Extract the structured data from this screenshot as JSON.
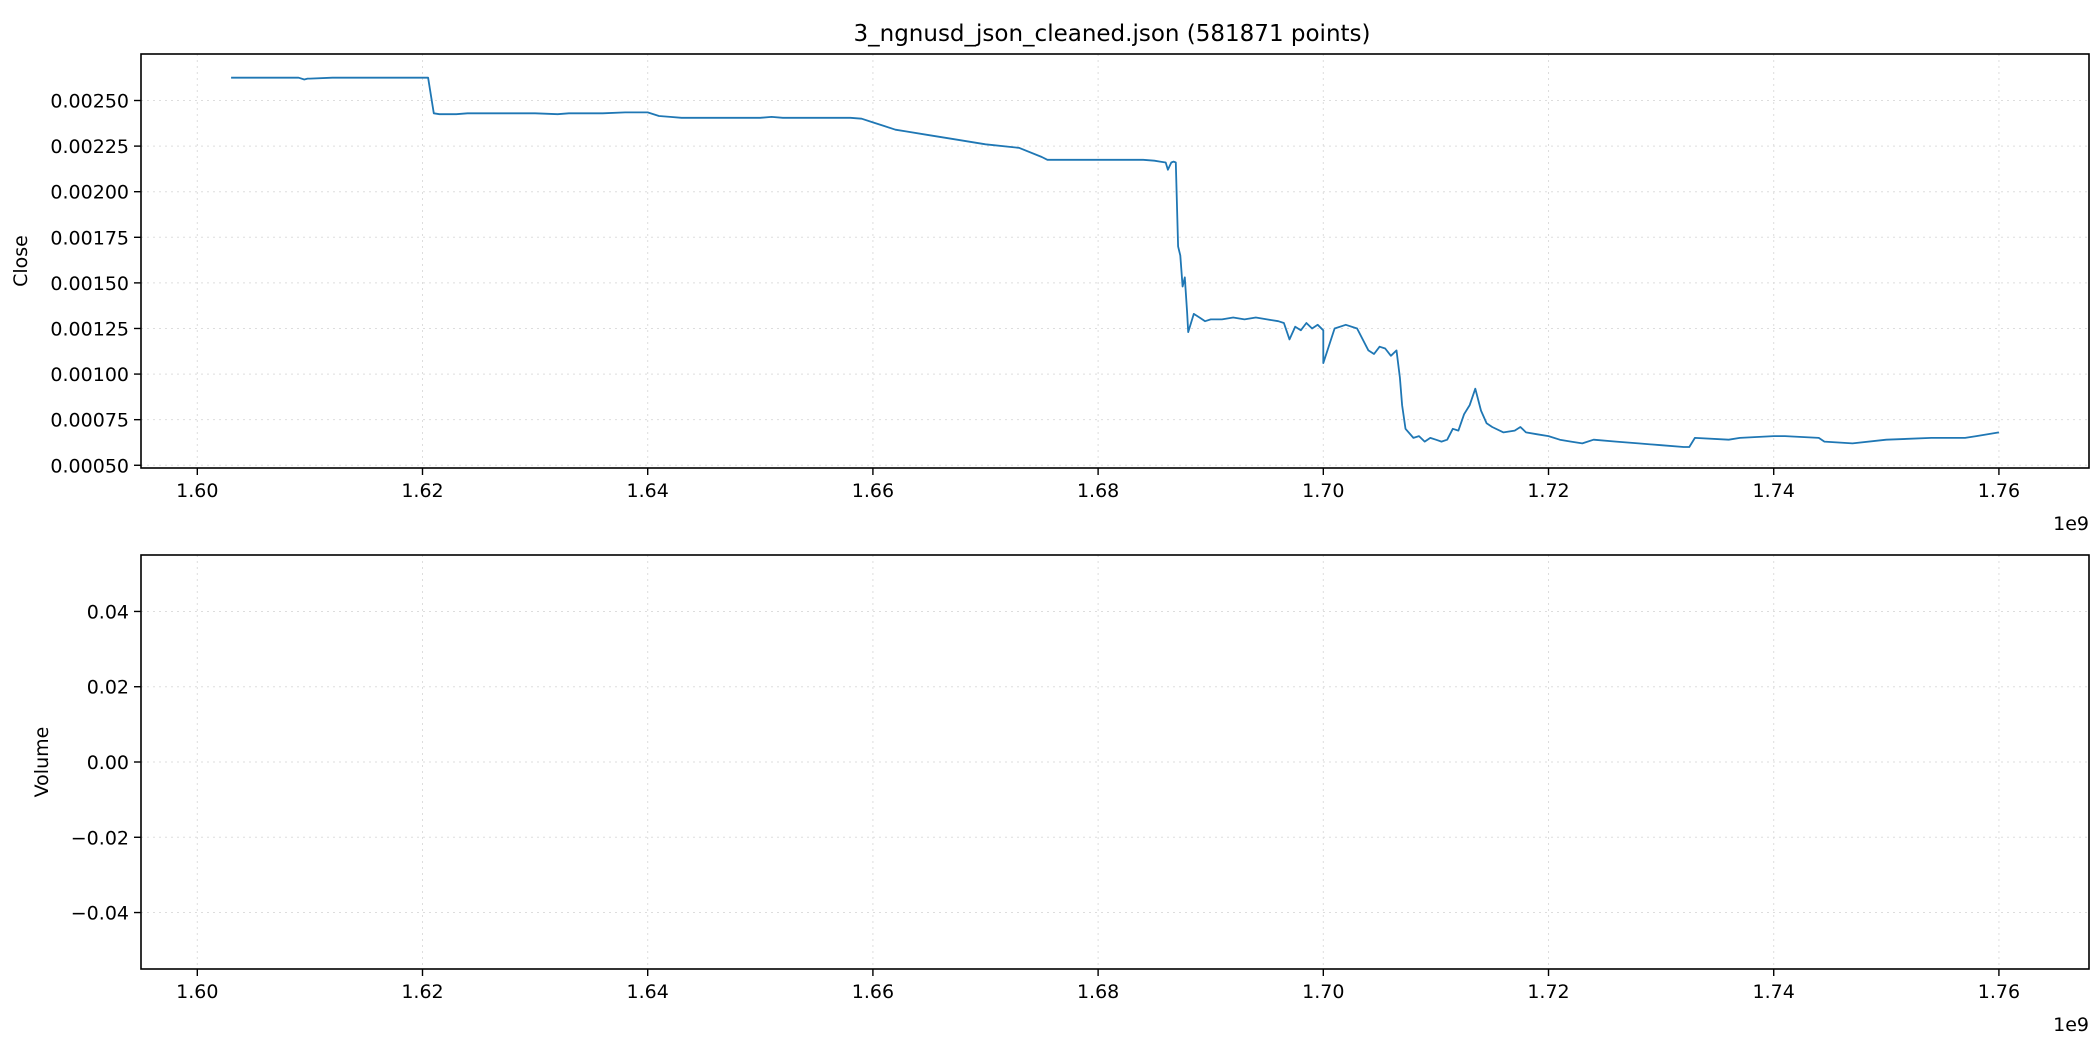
{
  "chart_data": [
    {
      "type": "line",
      "title": "3_ngnusd_json_cleaned.json (581871 points)",
      "xlabel": "",
      "ylabel": "Close",
      "x_offset_label": "1e9",
      "xlim": [
        1.595,
        1.768
      ],
      "ylim": [
        0.000485,
        0.002755
      ],
      "xticks": [
        1.6,
        1.62,
        1.64,
        1.66,
        1.68,
        1.7,
        1.72,
        1.74,
        1.76
      ],
      "xtick_labels": [
        "1.60",
        "1.62",
        "1.64",
        "1.66",
        "1.68",
        "1.70",
        "1.72",
        "1.74",
        "1.76"
      ],
      "yticks": [
        0.0005,
        0.00075,
        0.001,
        0.00125,
        0.0015,
        0.00175,
        0.002,
        0.00225,
        0.0025
      ],
      "ytick_labels": [
        "0.00050",
        "0.00075",
        "0.00100",
        "0.00125",
        "0.00150",
        "0.00175",
        "0.00200",
        "0.00225",
        "0.00250"
      ],
      "grid": true,
      "series": [
        {
          "color": "#1f77b4",
          "x": [
            1.603,
            1.609,
            1.6095,
            1.6098,
            1.61,
            1.612,
            1.6205,
            1.621,
            1.6215,
            1.623,
            1.624,
            1.63,
            1.632,
            1.633,
            1.636,
            1.638,
            1.64,
            1.641,
            1.642,
            1.643,
            1.645,
            1.65,
            1.651,
            1.652,
            1.653,
            1.656,
            1.658,
            1.659,
            1.66,
            1.661,
            1.662,
            1.663,
            1.665,
            1.667,
            1.67,
            1.673,
            1.675,
            1.6755,
            1.678,
            1.682,
            1.684,
            1.685,
            1.6855,
            1.686,
            1.6862,
            1.6865,
            1.6867,
            1.6869,
            1.6871,
            1.6873,
            1.6875,
            1.6877,
            1.6879,
            1.688,
            1.6885,
            1.689,
            1.6895,
            1.69,
            1.691,
            1.692,
            1.693,
            1.694,
            1.695,
            1.696,
            1.6965,
            1.697,
            1.6975,
            1.698,
            1.6985,
            1.699,
            1.6995,
            1.7,
            1.7,
            1.701,
            1.702,
            1.703,
            1.704,
            1.7045,
            1.705,
            1.7055,
            1.706,
            1.7065,
            1.7068,
            1.707,
            1.7073,
            1.708,
            1.7085,
            1.709,
            1.7095,
            1.71,
            1.7105,
            1.711,
            1.7115,
            1.712,
            1.7125,
            1.713,
            1.7135,
            1.714,
            1.7145,
            1.715,
            1.716,
            1.717,
            1.7175,
            1.718,
            1.719,
            1.72,
            1.721,
            1.722,
            1.723,
            1.724,
            1.726,
            1.728,
            1.73,
            1.732,
            1.7325,
            1.733,
            1.736,
            1.737,
            1.74,
            1.741,
            1.744,
            1.7445,
            1.747,
            1.75,
            1.754,
            1.757,
            1.758,
            1.76
          ],
          "y": [
            0.002625,
            0.002625,
            0.002615,
            0.00262,
            0.00262,
            0.002625,
            0.002625,
            0.00243,
            0.002425,
            0.002425,
            0.00243,
            0.00243,
            0.002425,
            0.00243,
            0.00243,
            0.002435,
            0.002435,
            0.002415,
            0.00241,
            0.002405,
            0.002405,
            0.002405,
            0.00241,
            0.002405,
            0.002405,
            0.002405,
            0.002405,
            0.0024,
            0.00238,
            0.00236,
            0.00234,
            0.00233,
            0.00231,
            0.00229,
            0.00226,
            0.00224,
            0.00219,
            0.002175,
            0.002175,
            0.002175,
            0.002175,
            0.00217,
            0.002165,
            0.00216,
            0.00212,
            0.00216,
            0.002165,
            0.00216,
            0.0017,
            0.00165,
            0.00148,
            0.00153,
            0.00134,
            0.00123,
            0.00133,
            0.00131,
            0.00129,
            0.0013,
            0.0013,
            0.00131,
            0.0013,
            0.00131,
            0.0013,
            0.00129,
            0.00128,
            0.00119,
            0.00126,
            0.00124,
            0.00128,
            0.00125,
            0.00127,
            0.00124,
            0.00106,
            0.00125,
            0.00127,
            0.00125,
            0.00113,
            0.00111,
            0.00115,
            0.00114,
            0.0011,
            0.00113,
            0.00098,
            0.00083,
            0.0007,
            0.00065,
            0.00066,
            0.00063,
            0.00065,
            0.00064,
            0.00063,
            0.00064,
            0.0007,
            0.00069,
            0.00078,
            0.00083,
            0.00092,
            0.0008,
            0.00073,
            0.00071,
            0.00068,
            0.00069,
            0.00071,
            0.00068,
            0.00067,
            0.00066,
            0.00064,
            0.00063,
            0.00062,
            0.00064,
            0.00063,
            0.00062,
            0.00061,
            0.0006,
            0.0006,
            0.00065,
            0.00064,
            0.00065,
            0.00066,
            0.00066,
            0.00065,
            0.00063,
            0.00062,
            0.00064,
            0.00065,
            0.00065,
            0.00066,
            0.00068
          ]
        }
      ]
    },
    {
      "type": "line",
      "title": "",
      "xlabel": "",
      "ylabel": "Volume",
      "x_offset_label": "1e9",
      "xlim": [
        1.595,
        1.768
      ],
      "ylim": [
        -0.055,
        0.055
      ],
      "xticks": [
        1.6,
        1.62,
        1.64,
        1.66,
        1.68,
        1.7,
        1.72,
        1.74,
        1.76
      ],
      "xtick_labels": [
        "1.60",
        "1.62",
        "1.64",
        "1.66",
        "1.68",
        "1.70",
        "1.72",
        "1.74",
        "1.76"
      ],
      "yticks": [
        -0.04,
        -0.02,
        0.0,
        0.02,
        0.04
      ],
      "ytick_labels": [
        "−0.04",
        "−0.02",
        "0.00",
        "0.02",
        "0.04"
      ],
      "grid": true,
      "series": []
    }
  ]
}
